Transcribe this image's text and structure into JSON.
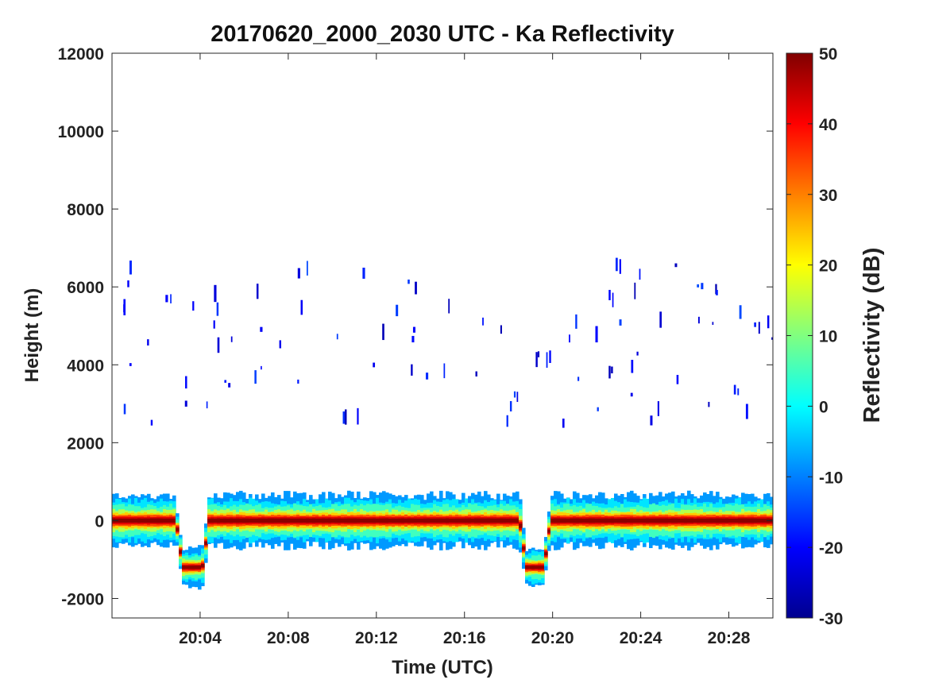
{
  "chart_data": {
    "type": "heatmap",
    "title": "20170620_2000_2030 UTC - Ka Reflectivity",
    "xlabel": "Time (UTC)",
    "ylabel": "Height (m)",
    "x_tick_labels": [
      "20:04",
      "20:08",
      "20:12",
      "20:16",
      "20:20",
      "20:24",
      "20:28"
    ],
    "x_ticks_minutes": [
      4,
      8,
      12,
      16,
      20,
      24,
      28
    ],
    "xlim_minutes": [
      0,
      30
    ],
    "y_tick_labels": [
      "12000",
      "10000",
      "8000",
      "6000",
      "4000",
      "2000",
      "0",
      "-2000"
    ],
    "y_ticks": [
      12000,
      10000,
      8000,
      6000,
      4000,
      2000,
      0,
      -2000
    ],
    "ylim": [
      -2500,
      12000
    ],
    "colorbar": {
      "label": "Reflectivity (dB)",
      "range": [
        -30,
        50
      ],
      "tick_labels": [
        "50",
        "40",
        "30",
        "20",
        "10",
        "0",
        "-10",
        "-20",
        "-30"
      ],
      "ticks": [
        50,
        40,
        30,
        20,
        10,
        0,
        -10,
        -20,
        -30
      ],
      "colormap": "jet"
    },
    "features": {
      "surface_band": {
        "height_m": 0,
        "peak_dB": 50,
        "halo_top_m": 600,
        "halo_bottom_m": -600
      },
      "dips": [
        {
          "start_min": 2.9,
          "end_min": 4.4,
          "depth_m": -1200
        },
        {
          "start_min": 18.5,
          "end_min": 19.9,
          "depth_m": -1200
        }
      ],
      "scattered_echo_layer_m": [
        2500,
        6600
      ],
      "scattered_echo_dB": -20
    },
    "grid": false,
    "legend": "none"
  }
}
